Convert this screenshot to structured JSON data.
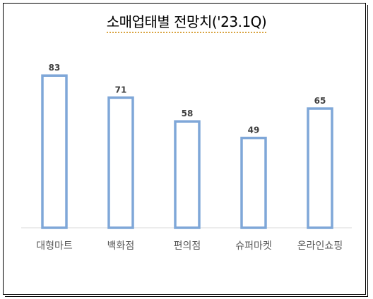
{
  "chart_data": {
    "type": "bar",
    "title": "소매업태별  전망치('23.1Q)",
    "categories": [
      "대형마트",
      "백화점",
      "편의점",
      "슈퍼마켓",
      "온라인쇼핑"
    ],
    "values": [
      83,
      71,
      58,
      49,
      65
    ],
    "xlabel": "",
    "ylabel": "",
    "ylim": [
      0,
      100
    ],
    "grid": false,
    "legend": "none",
    "bar_outline_color": "#7fa7d8",
    "bar_fill_color": "#ffffff"
  }
}
